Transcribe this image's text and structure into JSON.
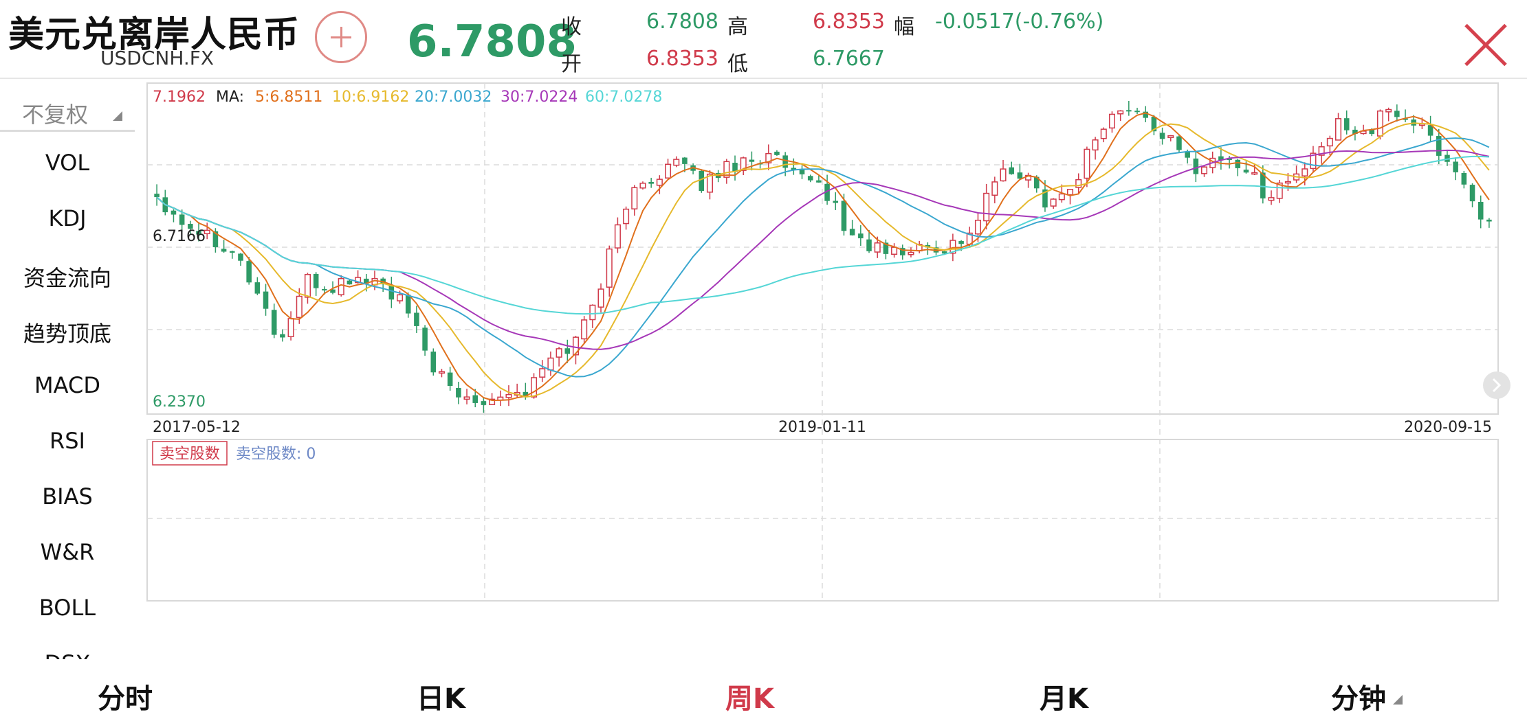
{
  "header": {
    "title": "美元兑离岸人民币",
    "symbol": "USDCNH.FX",
    "price": "6.7808",
    "quote": {
      "close_label": "收",
      "close_value": "6.7808",
      "open_label": "开",
      "open_value": "6.8353",
      "high_label": "高",
      "high_value": "6.8353",
      "low_label": "低",
      "low_value": "6.7667",
      "change_label": "幅",
      "change_value": "-0.0517(-0.76%)"
    }
  },
  "sidebar": {
    "adjust_label": "不复权",
    "indicators": [
      "VOL",
      "KDJ",
      "资金流向",
      "趋势顶底",
      "MACD",
      "RSI",
      "BIAS",
      "W&R",
      "BOLL",
      "DSX"
    ]
  },
  "chart_data": {
    "type": "candlestick",
    "period": "weekly",
    "max_label": "7.1962",
    "mid_label": "6.7166",
    "min_label": "6.2370",
    "ylim": [
      6.237,
      7.1962
    ],
    "ma_prefix": "MA:",
    "ma": [
      {
        "label": "5:6.8511",
        "color": "#e0701c"
      },
      {
        "label": "10:6.9162",
        "color": "#e6b92c"
      },
      {
        "label": "20:7.0032",
        "color": "#3aa7cf"
      },
      {
        "label": "30:7.0224",
        "color": "#a638b8"
      },
      {
        "label": "60:7.0278",
        "color": "#55d6d6"
      }
    ],
    "x_labels": [
      "2017-05-12",
      "2019-01-11",
      "2020-09-15"
    ],
    "anchors": [
      6.87,
      6.8,
      6.76,
      6.72,
      6.6,
      6.44,
      6.62,
      6.6,
      6.63,
      6.62,
      6.55,
      6.4,
      6.29,
      6.28,
      6.3,
      6.3,
      6.4,
      6.45,
      6.62,
      6.85,
      6.92,
      6.97,
      6.9,
      6.95,
      6.98,
      6.98,
      6.91,
      6.9,
      6.76,
      6.72,
      6.7,
      6.72,
      6.72,
      6.76,
      6.92,
      6.94,
      6.86,
      6.88,
      7.04,
      7.12,
      7.1,
      7.03,
      6.95,
      6.98,
      6.96,
      6.87,
      6.92,
      6.98,
      7.09,
      7.05,
      7.12,
      7.08,
      7.0,
      6.9,
      6.78
    ],
    "candle_count": 160,
    "sub_chart": {
      "button": "卖空股数",
      "value_label": "卖空股数: 0"
    }
  },
  "tabs": [
    "分时",
    "日K",
    "周K",
    "月K",
    "分钟"
  ],
  "active_tab": "周K"
}
